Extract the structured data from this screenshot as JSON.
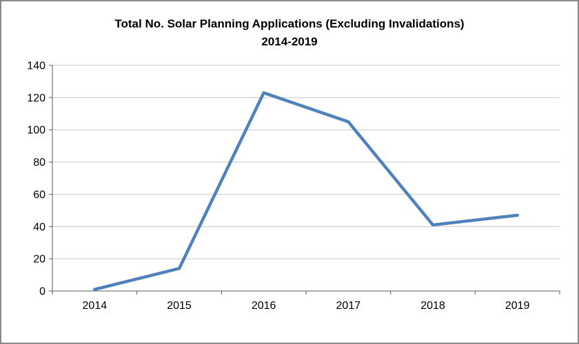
{
  "title": {
    "line1": "Total No. Solar Planning Applications (Excluding Invalidations)",
    "line2": "2014-2019"
  },
  "chart_data": {
    "type": "line",
    "title": "Total No. Solar Planning Applications (Excluding Invalidations) 2014-2019",
    "categories": [
      "2014",
      "2015",
      "2016",
      "2017",
      "2018",
      "2019"
    ],
    "series": [
      {
        "name": "Total No. Solar Planning Applications (Excluding Invalidations)",
        "values": [
          1,
          14,
          123,
          105,
          41,
          47
        ]
      }
    ],
    "xlabel": "",
    "ylabel": "",
    "ylim": [
      0,
      140
    ],
    "ytick_step": 20,
    "grid": true,
    "legend": "none",
    "colors": {
      "line": "#4F81BD",
      "grid": "#C6C6C6",
      "axis": "#595959",
      "text": "#000000"
    }
  }
}
